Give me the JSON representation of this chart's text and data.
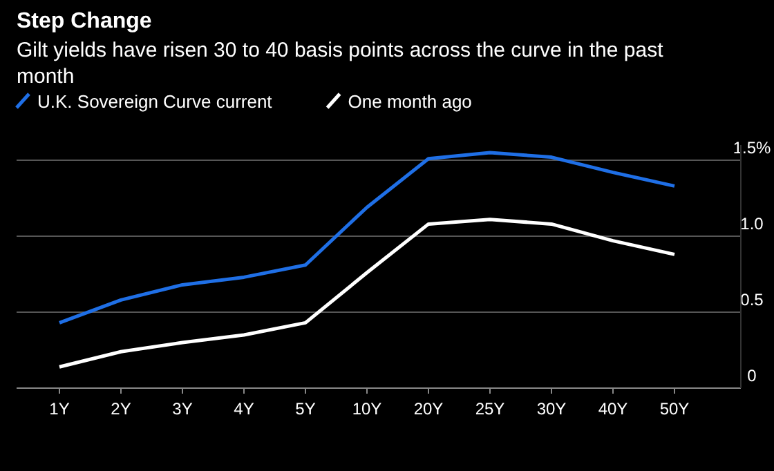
{
  "chart_data": {
    "type": "line",
    "title": "Step Change",
    "subtitle": "Gilt yields have risen 30 to 40 basis points across the curve in the past month",
    "categories": [
      "1Y",
      "2Y",
      "3Y",
      "4Y",
      "5Y",
      "10Y",
      "20Y",
      "25Y",
      "30Y",
      "40Y",
      "50Y"
    ],
    "series": [
      {
        "name": "U.K. Sovereign Curve current",
        "color": "#1f6fe6",
        "values": [
          0.43,
          0.58,
          0.68,
          0.73,
          0.81,
          1.19,
          1.51,
          1.55,
          1.52,
          1.42,
          1.33
        ]
      },
      {
        "name": "One month ago",
        "color": "#ffffff",
        "values": [
          0.14,
          0.24,
          0.3,
          0.35,
          0.43,
          0.76,
          1.08,
          1.11,
          1.08,
          0.97,
          0.88
        ]
      }
    ],
    "ylim": [
      0,
      1.6
    ],
    "yticks": [
      0,
      0.5,
      {
        "value": 1,
        "label": "1.0"
      },
      {
        "value": 1.5,
        "label": "1.5%"
      }
    ],
    "grid": "y",
    "legend": "top left",
    "marker": "none",
    "line_style": "solid"
  }
}
